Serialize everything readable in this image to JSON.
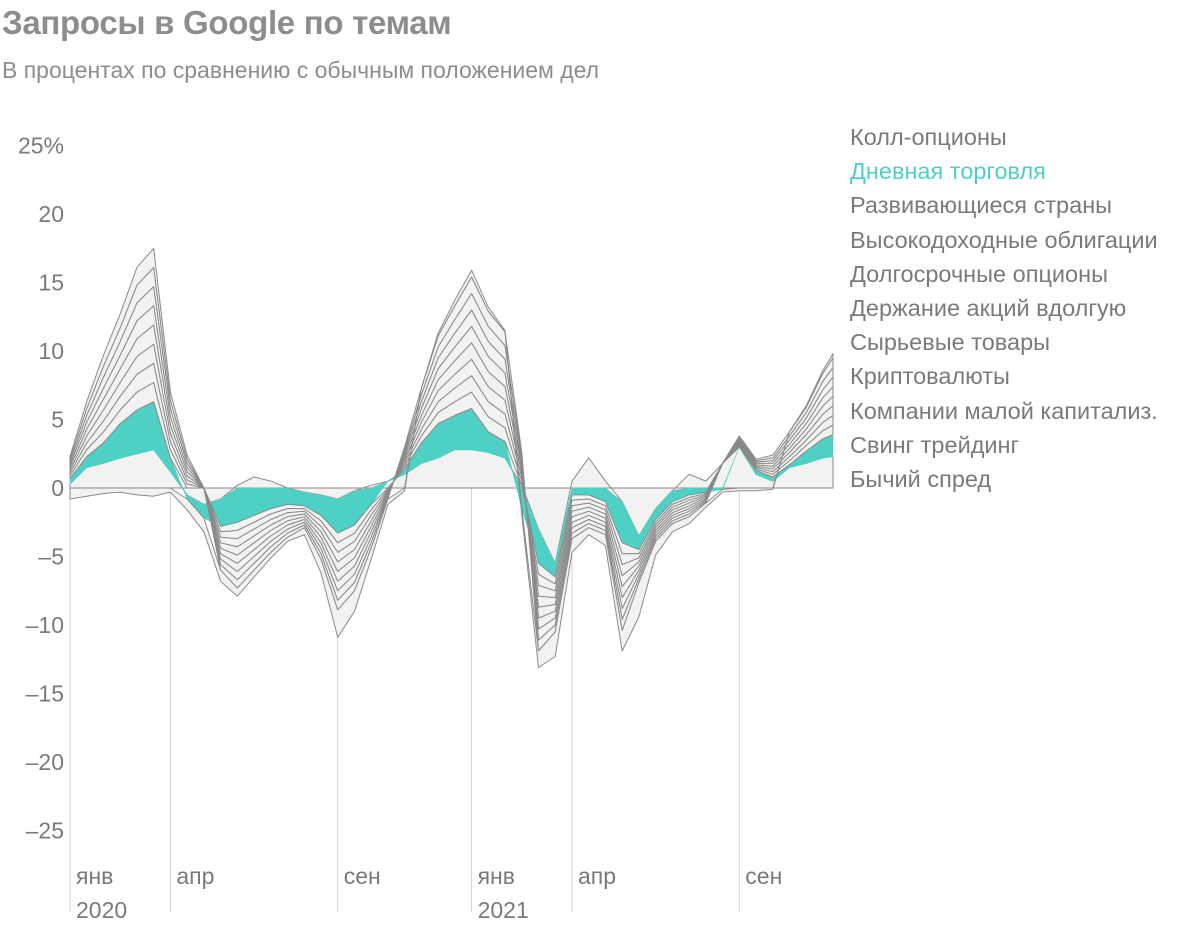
{
  "title": "Запросы в Google по темам",
  "subtitle": "В процентах по сравнению с обычным положением дел",
  "colors": {
    "highlight": "#4fd0c4",
    "band_fill": "#f2f2f2",
    "band_stroke": "#8a8a8a",
    "text": "#7a7a7a",
    "title": "#8d8d8d"
  },
  "chart_data": {
    "type": "area",
    "stacked": true,
    "title": "Запросы в Google по темам",
    "subtitle": "В процентах по сравнению с обычным положением дел",
    "ylim": [
      -27,
      25
    ],
    "y_ticks": [
      25,
      20,
      15,
      10,
      5,
      0,
      -5,
      -10,
      -15,
      -20,
      -25
    ],
    "y_tick_labels": [
      "25%",
      "20",
      "15",
      "10",
      "5",
      "0",
      "–5",
      "–10",
      "–15",
      "–20",
      "–25"
    ],
    "xlim": [
      0,
      22.8
    ],
    "x_ticks": [
      {
        "x": 0,
        "label": "янв",
        "year": "2020"
      },
      {
        "x": 3,
        "label": "апр"
      },
      {
        "x": 8,
        "label": "сен"
      },
      {
        "x": 12,
        "label": "янв",
        "year": "2021"
      },
      {
        "x": 15,
        "label": "апр"
      },
      {
        "x": 20,
        "label": "сен"
      }
    ],
    "legend_position": "right",
    "highlight_series": "Дневная торговля",
    "x": [
      0,
      0.5,
      1,
      1.5,
      2,
      2.5,
      3,
      3.5,
      4,
      4.5,
      5,
      5.5,
      6,
      6.5,
      7,
      7.5,
      8,
      8.5,
      9,
      9.5,
      10,
      10.5,
      11,
      11.5,
      12,
      12.5,
      13,
      13.5,
      14,
      14.5,
      15,
      15.5,
      16,
      16.5,
      17,
      17.5,
      18,
      18.5,
      19,
      19.5,
      20,
      20.5,
      21,
      21.5,
      22,
      22.5,
      22.8
    ],
    "series": [
      {
        "name": "Колл-опционы",
        "values": [
          0.3,
          1.5,
          1.8,
          2.2,
          2.5,
          2.8,
          1.2,
          -0.5,
          -1.2,
          -0.8,
          0.2,
          0.8,
          0.5,
          0,
          -0.3,
          -0.5,
          -0.8,
          -0.2,
          0.2,
          0.5,
          1,
          1.8,
          2.2,
          2.8,
          2.8,
          2.6,
          2.2,
          0.2,
          -3,
          -5.5,
          0.5,
          2.2,
          0.5,
          -1,
          -3.5,
          -1.5,
          -0.2,
          1,
          0.5,
          1.8,
          3,
          1,
          0.5,
          1.5,
          1.8,
          2.2,
          2.3
        ]
      },
      {
        "name": "Дневная торговля",
        "values": [
          0.4,
          0.8,
          1.5,
          2.5,
          3.2,
          3.5,
          1,
          -0.3,
          -1,
          -2,
          -2.5,
          -2,
          -1.5,
          -1.2,
          -1,
          -1.5,
          -2.5,
          -2.5,
          -1.2,
          0,
          0.4,
          1.5,
          2.5,
          2.5,
          3,
          1.5,
          1.2,
          -1.5,
          -2.5,
          -1,
          -0.5,
          -0.5,
          -1,
          -3,
          -1,
          -0.8,
          -0.8,
          -0.5,
          -0.3,
          -0.1,
          0,
          0.3,
          0.3,
          0.2,
          0.9,
          1.4,
          1.6
        ]
      },
      {
        "name": "Развивающиеся страны",
        "values": [
          0.2,
          0.5,
          0.8,
          1,
          1.3,
          1.4,
          0.6,
          0.3,
          0,
          -0.4,
          -0.6,
          -0.5,
          -0.4,
          -0.3,
          -0.2,
          -0.4,
          -0.7,
          -0.6,
          -0.4,
          -0.1,
          0.2,
          0.5,
          0.8,
          1,
          1.2,
          1.1,
          1,
          0.3,
          -0.8,
          -0.5,
          -0.4,
          -0.3,
          -0.3,
          -0.8,
          -0.3,
          -0.2,
          -0.2,
          -0.2,
          -0.1,
          0,
          0.1,
          0.1,
          0.2,
          0.3,
          0.4,
          0.6,
          0.7
        ]
      },
      {
        "name": "Высокодоходные облигации",
        "values": [
          0.2,
          0.5,
          0.8,
          1,
          1.3,
          1.4,
          0.6,
          0.3,
          0,
          -0.4,
          -0.6,
          -0.5,
          -0.4,
          -0.3,
          -0.2,
          -0.4,
          -0.7,
          -0.6,
          -0.4,
          -0.1,
          0.2,
          0.5,
          0.8,
          1,
          1.2,
          1.1,
          1,
          0.3,
          -0.8,
          -0.5,
          -0.4,
          -0.3,
          -0.3,
          -0.8,
          -0.3,
          -0.2,
          -0.2,
          -0.2,
          -0.1,
          0,
          0.1,
          0.1,
          0.2,
          0.3,
          0.4,
          0.6,
          0.7
        ]
      },
      {
        "name": "Долгосрочные опционы",
        "values": [
          0.2,
          0.5,
          0.8,
          1,
          1.3,
          1.4,
          0.6,
          0.3,
          0,
          -0.4,
          -0.6,
          -0.5,
          -0.4,
          -0.3,
          -0.2,
          -0.4,
          -0.7,
          -0.6,
          -0.4,
          -0.1,
          0.2,
          0.5,
          0.8,
          1,
          1.2,
          1.1,
          1,
          0.3,
          -0.8,
          -0.5,
          -0.4,
          -0.3,
          -0.3,
          -0.8,
          -0.3,
          -0.2,
          -0.2,
          -0.2,
          -0.1,
          0,
          0.1,
          0.1,
          0.2,
          0.3,
          0.4,
          0.6,
          0.7
        ]
      },
      {
        "name": "Держание акций вдолгую",
        "values": [
          0.2,
          0.5,
          0.8,
          1,
          1.3,
          1.4,
          0.6,
          0.3,
          0,
          -0.4,
          -0.6,
          -0.5,
          -0.4,
          -0.3,
          -0.2,
          -0.4,
          -0.7,
          -0.6,
          -0.4,
          -0.1,
          0.2,
          0.5,
          0.8,
          1,
          1.2,
          1.1,
          1,
          0.3,
          -0.8,
          -0.5,
          -0.4,
          -0.3,
          -0.3,
          -0.8,
          -0.3,
          -0.2,
          -0.2,
          -0.2,
          -0.1,
          0,
          0.1,
          0.1,
          0.2,
          0.3,
          0.4,
          0.6,
          0.7
        ]
      },
      {
        "name": "Сырьевые товары",
        "values": [
          0.2,
          0.5,
          0.8,
          1,
          1.3,
          1.4,
          0.6,
          0.3,
          0,
          -0.4,
          -0.6,
          -0.5,
          -0.4,
          -0.3,
          -0.2,
          -0.4,
          -0.7,
          -0.6,
          -0.4,
          -0.1,
          0.2,
          0.5,
          0.8,
          1,
          1.2,
          1.1,
          1,
          0.3,
          -0.8,
          -0.5,
          -0.4,
          -0.3,
          -0.3,
          -0.8,
          -0.3,
          -0.2,
          -0.2,
          -0.2,
          -0.1,
          0,
          0.1,
          0.1,
          0.2,
          0.3,
          0.4,
          0.6,
          0.7
        ]
      },
      {
        "name": "Криптовалюты",
        "values": [
          0.2,
          0.5,
          0.8,
          1,
          1.3,
          1.4,
          0.6,
          0.3,
          0,
          -0.4,
          -0.6,
          -0.5,
          -0.4,
          -0.3,
          -0.2,
          -0.4,
          -0.7,
          -0.6,
          -0.4,
          -0.1,
          0.2,
          0.5,
          0.8,
          1,
          1.2,
          1.1,
          1,
          0.3,
          -0.8,
          -0.5,
          -0.4,
          -0.3,
          -0.3,
          -0.8,
          -0.3,
          -0.2,
          -0.2,
          -0.2,
          -0.1,
          0,
          0.1,
          0.1,
          0.2,
          0.3,
          0.4,
          0.6,
          0.7
        ]
      },
      {
        "name": "Компании малой капитализ.",
        "values": [
          0.2,
          0.5,
          0.8,
          1,
          1.3,
          1.4,
          0.6,
          0.3,
          0,
          -0.4,
          -0.6,
          -0.5,
          -0.4,
          -0.3,
          -0.2,
          -0.4,
          -0.7,
          -0.6,
          -0.4,
          -0.1,
          0.2,
          0.5,
          0.8,
          1,
          1.2,
          1.1,
          1,
          0.3,
          -0.8,
          -0.5,
          -0.4,
          -0.3,
          -0.3,
          -0.8,
          -0.3,
          -0.2,
          -0.2,
          -0.2,
          -0.1,
          0,
          0.1,
          0.1,
          0.2,
          0.3,
          0.4,
          0.6,
          0.7
        ]
      },
      {
        "name": "Свинг трейдинг",
        "values": [
          0.2,
          0.5,
          0.8,
          1,
          1.3,
          1.4,
          0.6,
          0.3,
          0,
          -0.4,
          -0.6,
          -0.5,
          -0.4,
          -0.3,
          -0.2,
          -0.4,
          -0.7,
          -0.6,
          -0.4,
          -0.1,
          0.2,
          0.5,
          0.8,
          1,
          1.2,
          1.1,
          1,
          0.3,
          -0.8,
          -0.5,
          -0.4,
          -0.3,
          -0.3,
          -0.8,
          -0.3,
          -0.2,
          -0.2,
          -0.2,
          -0.1,
          0,
          0.1,
          0.1,
          0.2,
          0.3,
          0.4,
          0.6,
          0.7
        ]
      },
      {
        "name": "Бычий спред",
        "values": [
          -0.8,
          -0.6,
          -0.4,
          -0.3,
          -0.5,
          -0.6,
          -0.3,
          -0.8,
          -1,
          -0.8,
          -0.6,
          -0.5,
          -0.4,
          -0.3,
          -0.5,
          -1,
          -2,
          -1.5,
          -0.8,
          -0.4,
          -0.2,
          0,
          0.2,
          0.4,
          0.5,
          0.3,
          0.1,
          -0.5,
          -1.2,
          -1.8,
          -1,
          -0.5,
          -0.8,
          -1.5,
          -2.5,
          -1,
          -0.6,
          -0.5,
          -0.3,
          -0.2,
          -0.2,
          -0.2,
          -0.1,
          0,
          0.1,
          0.2,
          0.3
        ]
      }
    ]
  }
}
